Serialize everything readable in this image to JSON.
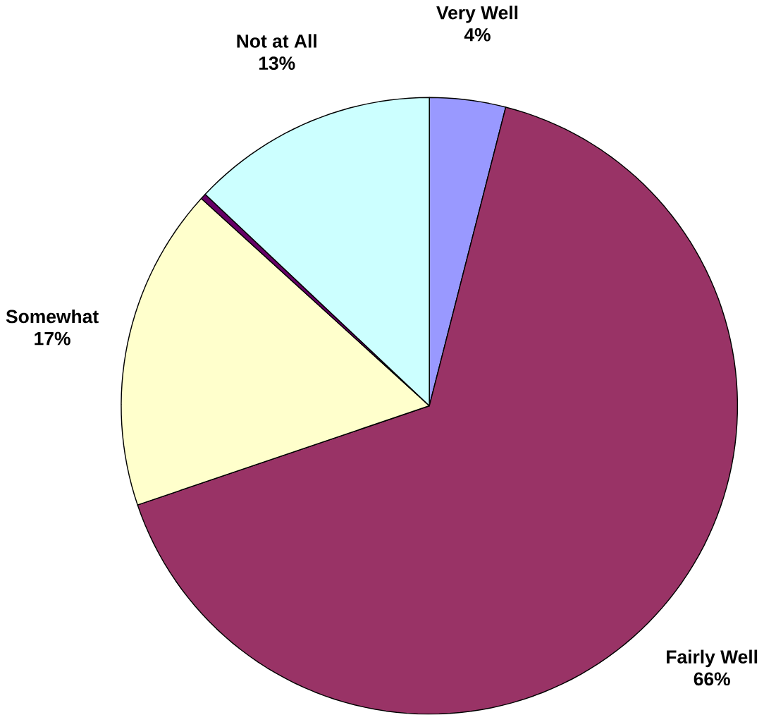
{
  "chart_data": {
    "type": "pie",
    "categories": [
      "Very Well",
      "Fairly Well",
      "Somewhat",
      null,
      "Not at All"
    ],
    "values": [
      4,
      66,
      17,
      0.3,
      13
    ],
    "value_labels": [
      "4%",
      "66%",
      "17%",
      null,
      "13%"
    ],
    "colors": [
      "#9999ff",
      "#993366",
      "#ffffcc",
      "#660066",
      "#ccffff"
    ]
  }
}
